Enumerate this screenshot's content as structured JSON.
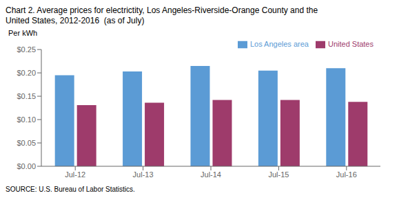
{
  "chart_data": {
    "type": "bar",
    "title": "Chart 2. Average prices for electrictity, Los Angeles-Riverside-Orange County and the\nUnited States, 2012-2016  (as of July)",
    "ylabel": "Per kWh",
    "source": "SOURCE: U.S. Bureau of Labor Statistics.",
    "categories": [
      "Jul-12",
      "Jul-13",
      "Jul-14",
      "Jul-15",
      "Jul-16"
    ],
    "series": [
      {
        "name": "Los Angeles area",
        "color": "#5B9BD5",
        "values": [
          0.195,
          0.203,
          0.215,
          0.205,
          0.21
        ]
      },
      {
        "name": "United States",
        "color": "#9E3B6B",
        "values": [
          0.131,
          0.136,
          0.142,
          0.142,
          0.138
        ]
      }
    ],
    "ylim": [
      0,
      0.25
    ],
    "yticks": [
      {
        "value": 0.0,
        "label": "$0.00"
      },
      {
        "value": 0.05,
        "label": "$0.05"
      },
      {
        "value": 0.1,
        "label": "$0.10"
      },
      {
        "value": 0.15,
        "label": "$0.15"
      },
      {
        "value": 0.2,
        "label": "$0.20"
      },
      {
        "value": 0.25,
        "label": "$0.25"
      }
    ],
    "grid": false,
    "legend": "upper right"
  }
}
